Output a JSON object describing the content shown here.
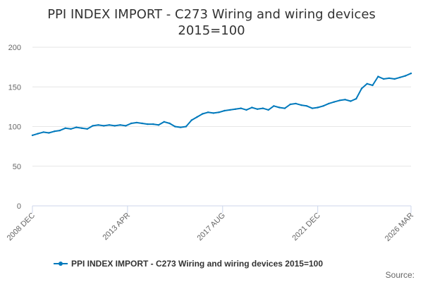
{
  "chart_data": {
    "type": "line",
    "title": "PPI INDEX IMPORT - C273 Wiring and wiring devices",
    "subtitle": "2015=100",
    "xlabel": "",
    "ylabel": "",
    "ylim": [
      0,
      200
    ],
    "yticks": [
      "0",
      "50",
      "100",
      "150",
      "200"
    ],
    "xticks": [
      "2008 DEC",
      "2013 APR",
      "2017 AUG",
      "2021 DEC",
      "2026 MAR"
    ],
    "xlim": [
      "2008 DEC",
      "2026 MAR"
    ],
    "grid": "horizontal",
    "legend_position": "bottom",
    "series": [
      {
        "name": "PPI INDEX IMPORT - C273 Wiring and wiring devices 2015=100",
        "color": "#0079bc",
        "x": [
          "2008 DEC",
          "2009 MAR",
          "2009 JUN",
          "2009 SEP",
          "2009 DEC",
          "2010 MAR",
          "2010 JUN",
          "2010 SEP",
          "2010 DEC",
          "2011 MAR",
          "2011 JUN",
          "2011 SEP",
          "2011 DEC",
          "2012 MAR",
          "2012 JUN",
          "2012 SEP",
          "2012 DEC",
          "2013 MAR",
          "2013 JUN",
          "2013 SEP",
          "2013 DEC",
          "2014 MAR",
          "2014 JUN",
          "2014 SEP",
          "2014 DEC",
          "2015 MAR",
          "2015 JUN",
          "2015 SEP",
          "2015 DEC",
          "2016 MAR",
          "2016 JUN",
          "2016 SEP",
          "2016 DEC",
          "2017 MAR",
          "2017 JUN",
          "2017 SEP",
          "2017 DEC",
          "2018 MAR",
          "2018 JUN",
          "2018 SEP",
          "2018 DEC",
          "2019 MAR",
          "2019 JUN",
          "2019 SEP",
          "2019 DEC",
          "2020 MAR",
          "2020 JUN",
          "2020 SEP",
          "2020 DEC",
          "2021 MAR",
          "2021 JUN",
          "2021 SEP",
          "2021 DEC",
          "2022 MAR",
          "2022 JUN",
          "2022 SEP",
          "2022 DEC",
          "2023 MAR",
          "2023 JUN",
          "2023 SEP",
          "2023 DEC",
          "2024 MAR",
          "2024 JUN",
          "2024 SEP",
          "2024 DEC",
          "2025 MAR",
          "2025 JUN",
          "2025 SEP",
          "2025 DEC",
          "2026 MAR"
        ],
        "values": [
          89,
          91,
          93,
          92,
          94,
          95,
          98,
          97,
          99,
          98,
          97,
          101,
          102,
          101,
          102,
          101,
          102,
          101,
          104,
          105,
          104,
          103,
          103,
          102,
          106,
          104,
          100,
          99,
          100,
          108,
          112,
          116,
          118,
          117,
          118,
          120,
          121,
          122,
          123,
          121,
          124,
          122,
          123,
          121,
          126,
          124,
          123,
          128,
          129,
          127,
          126,
          123,
          124,
          126,
          129,
          131,
          133,
          134,
          132,
          135,
          148,
          154,
          152,
          163,
          160,
          161,
          160,
          162,
          164,
          167
        ]
      }
    ]
  },
  "credits": "Source:"
}
